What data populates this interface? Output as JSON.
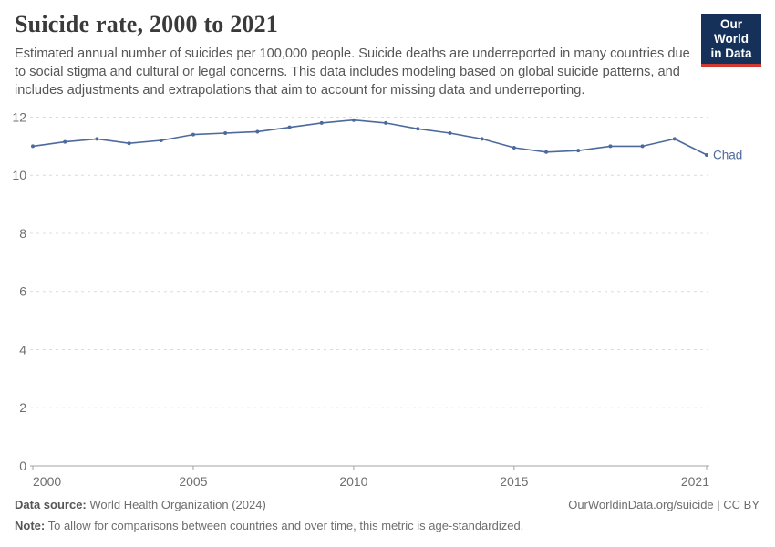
{
  "header": {
    "title": "Suicide rate, 2000 to 2021",
    "subtitle": "Estimated annual number of suicides per 100,000 people. Suicide deaths are underreported in many countries due to social stigma and cultural or legal concerns. This data includes modeling based on global suicide patterns, and includes adjustments and extrapolations that aim to account for missing data and underreporting.",
    "logo": {
      "line1": "Our World",
      "line2": "in Data",
      "bg_color": "#15315a",
      "accent_color": "#d13832"
    }
  },
  "chart_data": {
    "type": "line",
    "title": "Suicide rate, 2000 to 2021",
    "x": [
      2000,
      2001,
      2002,
      2003,
      2004,
      2005,
      2006,
      2007,
      2008,
      2009,
      2010,
      2011,
      2012,
      2013,
      2014,
      2015,
      2016,
      2017,
      2018,
      2019,
      2020,
      2021
    ],
    "series": [
      {
        "name": "Chad",
        "color": "#4c6a9c",
        "values": [
          11.0,
          11.15,
          11.25,
          11.1,
          11.2,
          11.4,
          11.45,
          11.5,
          11.65,
          11.8,
          11.9,
          11.8,
          11.6,
          11.45,
          11.25,
          10.95,
          10.8,
          10.85,
          11.0,
          11.0,
          11.25,
          10.7
        ]
      }
    ],
    "xlabel": "",
    "ylabel": "",
    "ylim": [
      0,
      12
    ],
    "yticks": [
      0,
      2,
      4,
      6,
      8,
      10,
      12
    ],
    "xticks": [
      2000,
      2005,
      2010,
      2015,
      2021
    ],
    "grid": "horizontal-dashed",
    "legend": "end-of-line-label",
    "end_label": "Chad",
    "colors": {
      "gridline": "#dcdcdc",
      "axis": "#a3a3a3",
      "tick_label": "#6f6f6f"
    }
  },
  "footer": {
    "datasource_label": "Data source:",
    "datasource_value": "World Health Organization (2024)",
    "link": "OurWorldinData.org/suicide | CC BY",
    "note_label": "Note:",
    "note_value": "To allow for comparisons between countries and over time, this metric is age-standardized."
  }
}
